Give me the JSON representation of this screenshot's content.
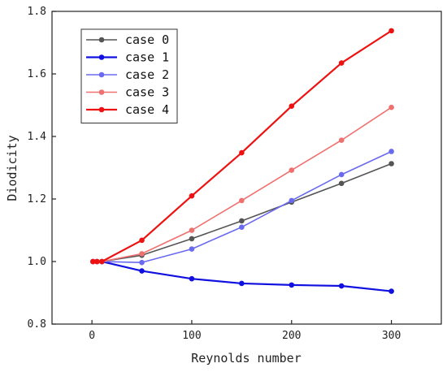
{
  "chart_data": {
    "type": "line",
    "xlabel": "Reynolds number",
    "ylabel": "Diodicity",
    "xlim": [
      -40,
      350
    ],
    "ylim": [
      0.8,
      1.8
    ],
    "xticks": [
      0,
      100,
      200,
      300
    ],
    "yticks": [
      0.8,
      1.0,
      1.2,
      1.4,
      1.6,
      1.8
    ],
    "x": [
      1,
      5,
      10,
      50,
      100,
      150,
      200,
      250,
      300
    ],
    "legend_position": "top-left",
    "series": [
      {
        "name": "case 0",
        "color": "#555555",
        "line_width": 1.6,
        "values": [
          1.0,
          1.0,
          1.0,
          1.02,
          1.073,
          1.13,
          1.19,
          1.25,
          1.313
        ]
      },
      {
        "name": "case 1",
        "color": "#1010e0",
        "line_width": 2.2,
        "values": [
          1.0,
          1.0,
          1.0,
          0.97,
          0.945,
          0.93,
          0.925,
          0.922,
          0.905
        ]
      },
      {
        "name": "case 2",
        "color": "#6a6af0",
        "line_width": 1.6,
        "values": [
          1.0,
          1.0,
          1.0,
          0.997,
          1.04,
          1.11,
          1.195,
          1.278,
          1.352
        ]
      },
      {
        "name": "case 3",
        "color": "#f07070",
        "line_width": 1.6,
        "values": [
          1.0,
          1.0,
          1.0,
          1.025,
          1.1,
          1.195,
          1.292,
          1.388,
          1.493
        ]
      },
      {
        "name": "case 4",
        "color": "#ee1111",
        "line_width": 2.2,
        "values": [
          1.0,
          1.0,
          1.0,
          1.068,
          1.21,
          1.348,
          1.497,
          1.635,
          1.738
        ]
      }
    ]
  }
}
